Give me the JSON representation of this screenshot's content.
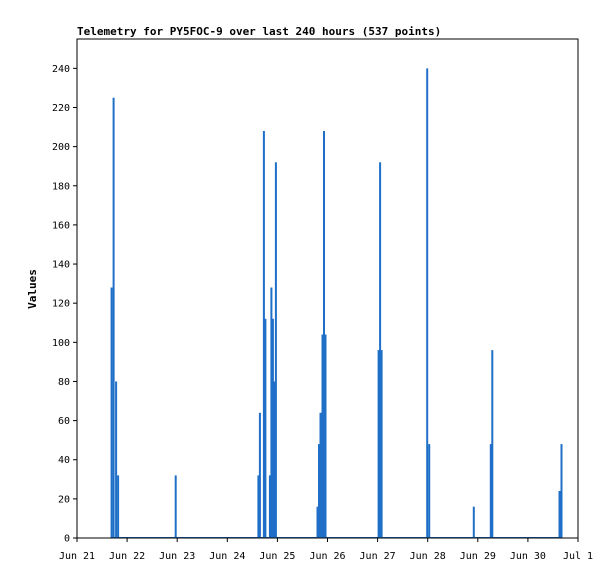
{
  "chart_data": {
    "type": "bar",
    "title": "Telemetry for PY5FOC-9 over last 240 hours (537 points)",
    "xlabel": "",
    "ylabel": "Values",
    "xlim": [
      "Jun 21",
      "Jul 1"
    ],
    "ylim": [
      0,
      255
    ],
    "grid": false,
    "bar_color": "#1f6fc8",
    "x_tick_labels": [
      "Jun 21",
      "Jun 22",
      "Jun 23",
      "Jun 24",
      "Jun 25",
      "Jun 26",
      "Jun 27",
      "Jun 28",
      "Jun 29",
      "Jun 30",
      "Jul 1"
    ],
    "y_tick_labels": [
      "0",
      "20",
      "40",
      "60",
      "80",
      "100",
      "120",
      "140",
      "160",
      "180",
      "200",
      "220",
      "240"
    ],
    "x_unit": "days since Jun 21 00:00",
    "points": [
      {
        "x": 0.69,
        "y": 128
      },
      {
        "x": 0.73,
        "y": 225
      },
      {
        "x": 0.78,
        "y": 80
      },
      {
        "x": 0.82,
        "y": 32
      },
      {
        "x": 1.97,
        "y": 32
      },
      {
        "x": 3.62,
        "y": 32
      },
      {
        "x": 3.65,
        "y": 64
      },
      {
        "x": 3.73,
        "y": 208
      },
      {
        "x": 3.76,
        "y": 112
      },
      {
        "x": 3.85,
        "y": 32
      },
      {
        "x": 3.88,
        "y": 128
      },
      {
        "x": 3.91,
        "y": 112
      },
      {
        "x": 3.94,
        "y": 80
      },
      {
        "x": 3.97,
        "y": 192
      },
      {
        "x": 4.8,
        "y": 16
      },
      {
        "x": 4.83,
        "y": 48
      },
      {
        "x": 4.86,
        "y": 64
      },
      {
        "x": 4.9,
        "y": 104
      },
      {
        "x": 4.93,
        "y": 208
      },
      {
        "x": 4.96,
        "y": 104
      },
      {
        "x": 6.02,
        "y": 96
      },
      {
        "x": 6.05,
        "y": 192
      },
      {
        "x": 6.08,
        "y": 96
      },
      {
        "x": 6.99,
        "y": 240
      },
      {
        "x": 7.03,
        "y": 48
      },
      {
        "x": 7.92,
        "y": 16
      },
      {
        "x": 8.26,
        "y": 48
      },
      {
        "x": 8.29,
        "y": 96
      },
      {
        "x": 9.63,
        "y": 24
      },
      {
        "x": 9.67,
        "y": 48
      }
    ]
  }
}
